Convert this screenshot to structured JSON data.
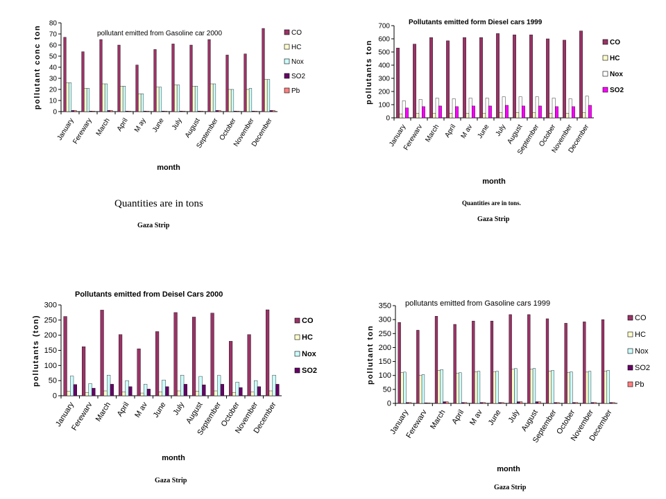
{
  "colors": {
    "CO": "#993366",
    "HC": "#ffffcc",
    "Nox": "#ccffff",
    "SO2": "#660066",
    "Pb": "#ff8080",
    "SO2_magenta": "#ff00ff"
  },
  "chart_data": [
    {
      "type": "bar",
      "title": "pollutant emitted from Gasoline car 2000",
      "xlabel": "month",
      "ylabel": "pollutant conc ton",
      "ylim": [
        0,
        80
      ],
      "yticks": [
        0,
        10,
        20,
        30,
        40,
        50,
        60,
        70,
        80
      ],
      "grid": false,
      "legend_position": "right",
      "categories": [
        "January",
        "Ferewary",
        "March",
        "April",
        "M ay",
        "June",
        "July",
        "August",
        "September",
        "October",
        "November",
        "December"
      ],
      "series": [
        {
          "name": "CO",
          "color": "#993366",
          "values": [
            67,
            54,
            65,
            60,
            42,
            56,
            61,
            60,
            65,
            51,
            52,
            75
          ]
        },
        {
          "name": "HC",
          "color": "#ffffcc",
          "values": [
            26,
            21,
            25,
            23,
            16,
            22,
            24,
            23,
            25,
            20,
            20,
            29
          ]
        },
        {
          "name": "Nox",
          "color": "#ccffff",
          "values": [
            26,
            21,
            25,
            23,
            16,
            22,
            24,
            23,
            25,
            20,
            21,
            29
          ]
        },
        {
          "name": "SO2",
          "color": "#660066",
          "values": [
            1,
            0.5,
            1,
            0.5,
            0.5,
            0.5,
            0.5,
            0.5,
            1,
            0.5,
            0.5,
            1
          ]
        },
        {
          "name": "Pb",
          "color": "#ff8080",
          "values": [
            1,
            0.5,
            1,
            0.5,
            0.5,
            0.5,
            0.5,
            0.5,
            1,
            0.5,
            0.5,
            1
          ]
        }
      ]
    },
    {
      "type": "bar",
      "title": "Pollutants emitted form Diesel cars 1999",
      "xlabel": "month",
      "ylabel": "pollutants ton",
      "ylim": [
        0,
        700
      ],
      "yticks": [
        0,
        100,
        200,
        300,
        400,
        500,
        600,
        700
      ],
      "grid": false,
      "legend_position": "right",
      "categories": [
        "January",
        "Ferewarv",
        "March",
        "April",
        "M av",
        "June",
        "July",
        "August",
        "September",
        "October",
        "November",
        "December"
      ],
      "series": [
        {
          "name": "CO",
          "color": "#993366",
          "values": [
            530,
            560,
            610,
            585,
            610,
            610,
            640,
            630,
            630,
            600,
            590,
            660
          ]
        },
        {
          "name": "HC",
          "color": "#ffffcc",
          "values": [
            30,
            35,
            35,
            35,
            35,
            35,
            40,
            40,
            40,
            35,
            35,
            40
          ]
        },
        {
          "name": "Nox",
          "color": "#ffffff",
          "values": [
            130,
            140,
            150,
            145,
            150,
            150,
            160,
            160,
            160,
            150,
            145,
            165
          ]
        },
        {
          "name": "SO2",
          "color": "#ff00ff",
          "values": [
            75,
            85,
            90,
            85,
            90,
            90,
            95,
            90,
            90,
            85,
            85,
            95
          ]
        }
      ]
    },
    {
      "type": "bar",
      "title": "Pollutants emitted from Deisel Cars 2000",
      "xlabel": "month",
      "ylabel": "pollutants (ton)",
      "ylim": [
        0,
        300
      ],
      "yticks": [
        0,
        50,
        100,
        150,
        200,
        250,
        300
      ],
      "grid": false,
      "legend_position": "right",
      "categories": [
        "January",
        "Ferewarv",
        "March",
        "April",
        "M av",
        "June",
        "July",
        "August",
        "September",
        "October",
        "November",
        "December"
      ],
      "series": [
        {
          "name": "CO",
          "color": "#993366",
          "values": [
            262,
            162,
            283,
            202,
            155,
            212,
            275,
            260,
            273,
            180,
            202,
            284
          ]
        },
        {
          "name": "HC",
          "color": "#ffffcc",
          "values": [
            15,
            10,
            16,
            12,
            9,
            12,
            16,
            15,
            16,
            11,
            12,
            16
          ]
        },
        {
          "name": "Nox",
          "color": "#ccffff",
          "values": [
            65,
            40,
            68,
            50,
            38,
            52,
            68,
            64,
            67,
            45,
            50,
            68
          ]
        },
        {
          "name": "SO2",
          "color": "#660066",
          "values": [
            37,
            25,
            38,
            30,
            22,
            30,
            38,
            36,
            38,
            27,
            30,
            38
          ]
        }
      ]
    },
    {
      "type": "bar",
      "title": "pollutants emitted from Gasoline cars 1999",
      "xlabel": "month",
      "ylabel": "pollutant ton",
      "ylim": [
        0,
        350
      ],
      "yticks": [
        0,
        50,
        100,
        150,
        200,
        250,
        300,
        350
      ],
      "grid": false,
      "legend_position": "right",
      "categories": [
        "January",
        "Ferewarv",
        "March",
        "April",
        "M av",
        "June",
        "July",
        "August",
        "September",
        "October",
        "November",
        "December"
      ],
      "series": [
        {
          "name": "CO",
          "color": "#993366",
          "values": [
            290,
            262,
            312,
            283,
            295,
            295,
            318,
            318,
            303,
            287,
            292,
            300
          ]
        },
        {
          "name": "HC",
          "color": "#ffffcc",
          "values": [
            110,
            100,
            118,
            108,
            113,
            113,
            122,
            122,
            116,
            110,
            112,
            115
          ]
        },
        {
          "name": "Nox",
          "color": "#ccffff",
          "values": [
            112,
            103,
            121,
            110,
            115,
            115,
            125,
            125,
            118,
            113,
            115,
            118
          ]
        },
        {
          "name": "SO2",
          "color": "#660066",
          "values": [
            3,
            2,
            6,
            3,
            3,
            3,
            6,
            6,
            3,
            3,
            3,
            3
          ]
        },
        {
          "name": "Pb",
          "color": "#ff8080",
          "values": [
            3,
            2,
            6,
            3,
            3,
            3,
            6,
            6,
            3,
            3,
            3,
            3
          ]
        }
      ]
    }
  ],
  "captions": {
    "c1_quantities": "Quantities are in tons",
    "c1_region": "Gaza Strip",
    "c2_quantities": "Quantities are in tons.",
    "c2_region": "Gaza Strip",
    "c3_region": "Gaza Strip",
    "c4_region": "Gaza Strip"
  }
}
